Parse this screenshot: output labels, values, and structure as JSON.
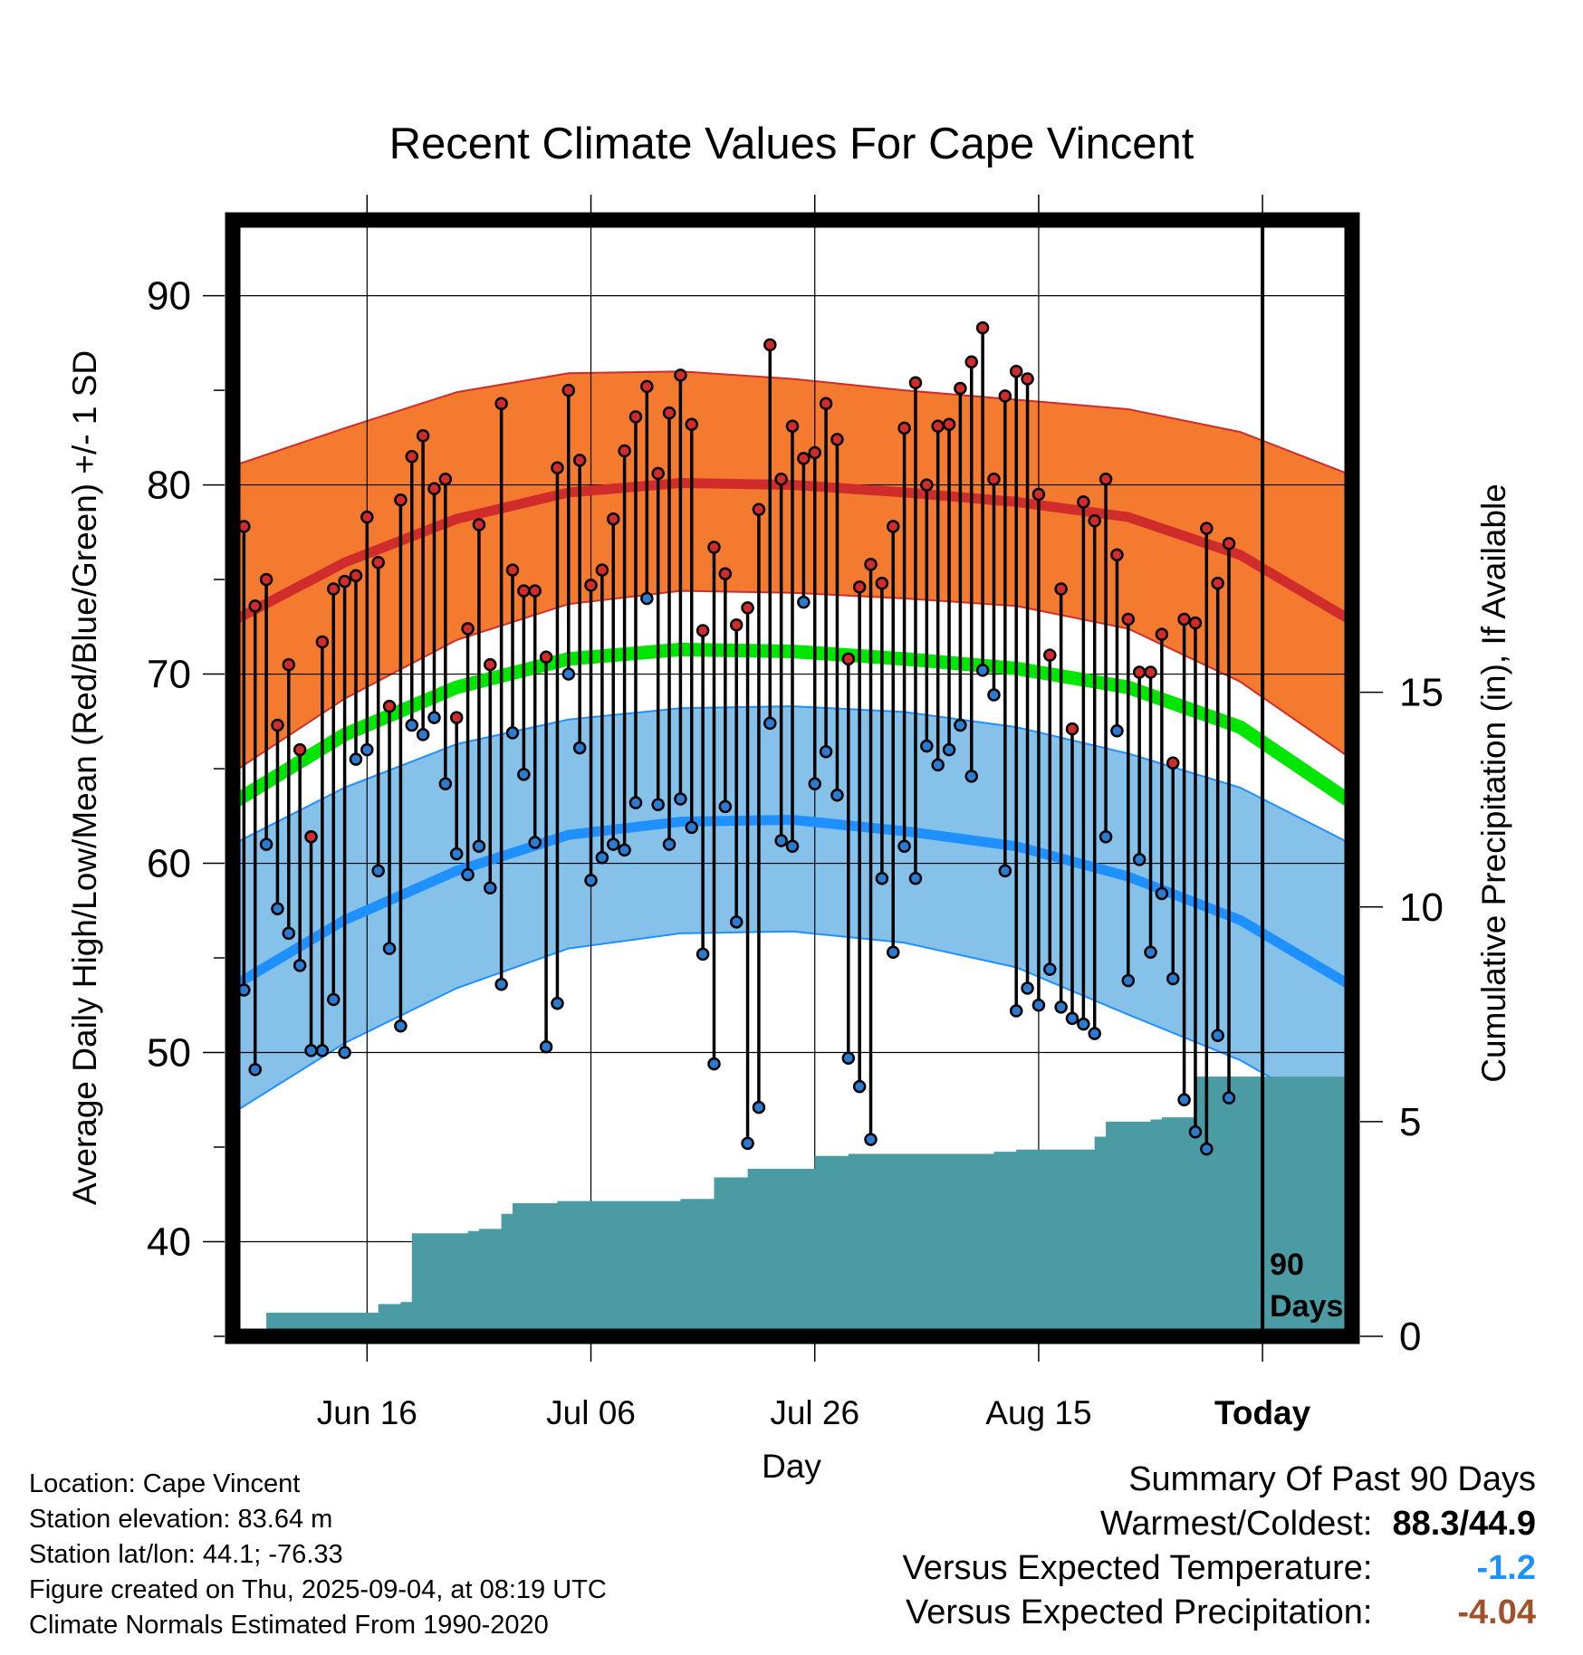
{
  "title": "Recent Climate Values For Cape Vincent",
  "colors": {
    "high_band": "#f47a30",
    "high_mean": "#d12c2c",
    "low_band": "#85c1e9",
    "low_mean": "#1e90ff",
    "mean": "#00e600",
    "precip": "#4a9ba3",
    "high_dot": "#d12c2c",
    "low_dot": "#2a7bd1"
  },
  "chart_data": {
    "type": "line",
    "title": "Recent Climate Values For Cape Vincent",
    "xlabel": "Day",
    "ylabel": "Average Daily High/Low/Mean (Red/Blue/Green) +/- 1 SD",
    "y2label": "Cumulative Precipitation (in), If Available",
    "xlim": [
      0,
      100
    ],
    "ylim": [
      35,
      94
    ],
    "y2lim": [
      0,
      26
    ],
    "x_ticks": [
      {
        "x": 12,
        "label": "Jun 16"
      },
      {
        "x": 32,
        "label": "Jul 06"
      },
      {
        "x": 52,
        "label": "Jul 26"
      },
      {
        "x": 72,
        "label": "Aug 15"
      },
      {
        "x": 92,
        "label": "Today"
      }
    ],
    "y_ticks": [
      40,
      50,
      60,
      70,
      80,
      90
    ],
    "y2_ticks": [
      0,
      5,
      10,
      15
    ],
    "today_x": 92,
    "today_label": [
      "90",
      "Days"
    ],
    "normals": {
      "x": [
        0,
        10,
        20,
        30,
        40,
        50,
        60,
        70,
        80,
        90,
        100
      ],
      "high_mean": [
        72.8,
        75.9,
        78.2,
        79.6,
        80.1,
        80.0,
        79.6,
        79.1,
        78.3,
        76.3,
        72.8
      ],
      "high_upper": [
        81.0,
        83.0,
        84.9,
        85.9,
        86.0,
        85.6,
        85.0,
        84.5,
        84.0,
        82.8,
        80.5
      ],
      "high_lower": [
        64.8,
        68.7,
        71.8,
        73.7,
        74.4,
        74.3,
        74.0,
        73.6,
        72.4,
        69.6,
        65.5
      ],
      "mean": [
        63.2,
        66.8,
        69.3,
        70.8,
        71.3,
        71.2,
        70.8,
        70.3,
        69.3,
        67.2,
        63.2
      ],
      "low_mean": [
        53.5,
        57.0,
        59.6,
        61.5,
        62.2,
        62.3,
        61.7,
        60.9,
        59.3,
        57.0,
        53.5
      ],
      "low_upper": [
        61.0,
        64.0,
        66.3,
        67.6,
        68.2,
        68.3,
        68.0,
        67.2,
        65.8,
        64.0,
        61.0
      ],
      "low_lower": [
        46.8,
        50.5,
        53.4,
        55.5,
        56.3,
        56.4,
        55.8,
        54.5,
        52.0,
        49.6,
        46.2
      ]
    },
    "series": [
      {
        "name": "High",
        "x": [
          0,
          1,
          2,
          3,
          4,
          5,
          6,
          7,
          8,
          9,
          10,
          11,
          12,
          13,
          14,
          15,
          16,
          17,
          18,
          19,
          20,
          21,
          22,
          23,
          24,
          25,
          26,
          27,
          28,
          29,
          30,
          31,
          32,
          33,
          34,
          35,
          36,
          37,
          38,
          39,
          40,
          41,
          42,
          43,
          44,
          45,
          46,
          47,
          48,
          49,
          50,
          51,
          52,
          53,
          54,
          55,
          56,
          57,
          58,
          59,
          60,
          61,
          62,
          63,
          64,
          65,
          66,
          67,
          68,
          69,
          70,
          71,
          72,
          73,
          74,
          75,
          76,
          77,
          78,
          79,
          80,
          81,
          82,
          83,
          84,
          85,
          86,
          87,
          88,
          89
        ],
        "values": [
          74.5,
          77.8,
          73.6,
          75.0,
          67.3,
          70.5,
          66.0,
          61.4,
          71.7,
          74.5,
          74.9,
          75.2,
          78.3,
          75.9,
          68.3,
          79.2,
          81.5,
          82.6,
          79.8,
          80.3,
          67.7,
          72.4,
          77.9,
          70.5,
          84.3,
          75.5,
          74.4,
          74.4,
          70.9,
          80.9,
          85.0,
          81.3,
          74.7,
          75.5,
          78.2,
          81.8,
          83.6,
          85.2,
          80.6,
          83.8,
          85.8,
          83.2,
          72.3,
          76.7,
          75.3,
          72.6,
          73.5,
          78.7,
          87.4,
          80.3,
          83.1,
          81.4,
          81.7,
          84.3,
          82.4,
          70.8,
          74.6,
          75.8,
          74.8,
          77.8,
          83.0,
          85.4,
          80.0,
          83.1,
          83.2,
          85.1,
          86.5,
          88.3,
          80.3,
          84.7,
          86.0,
          85.6,
          79.5,
          71.0,
          74.5,
          67.1,
          79.1,
          78.1,
          80.3,
          76.3,
          72.9,
          70.1,
          70.1,
          72.1,
          65.3,
          72.9,
          72.7,
          77.7,
          74.8,
          76.9
        ]
      },
      {
        "name": "Low",
        "x": [
          0,
          1,
          2,
          3,
          4,
          5,
          6,
          7,
          8,
          9,
          10,
          11,
          12,
          13,
          14,
          15,
          16,
          17,
          18,
          19,
          20,
          21,
          22,
          23,
          24,
          25,
          26,
          27,
          28,
          29,
          30,
          31,
          32,
          33,
          34,
          35,
          36,
          37,
          38,
          39,
          40,
          41,
          42,
          43,
          44,
          45,
          46,
          47,
          48,
          49,
          50,
          51,
          52,
          53,
          54,
          55,
          56,
          57,
          58,
          59,
          60,
          61,
          62,
          63,
          64,
          65,
          66,
          67,
          68,
          69,
          70,
          71,
          72,
          73,
          74,
          75,
          76,
          77,
          78,
          79,
          80,
          81,
          82,
          83,
          84,
          85,
          86,
          87,
          88,
          89
        ],
        "values": [
          56.4,
          53.3,
          49.1,
          61.0,
          57.6,
          56.3,
          54.6,
          50.1,
          50.1,
          52.8,
          50.0,
          65.5,
          66.0,
          59.6,
          55.5,
          51.4,
          67.3,
          66.8,
          67.7,
          64.2,
          60.5,
          59.4,
          60.9,
          58.7,
          53.6,
          66.9,
          64.7,
          61.1,
          50.3,
          52.6,
          70.0,
          66.1,
          59.1,
          60.3,
          61.0,
          60.7,
          63.2,
          74.0,
          63.1,
          61.0,
          63.4,
          61.9,
          55.2,
          49.4,
          63.0,
          56.9,
          45.2,
          47.1,
          67.4,
          61.2,
          60.9,
          73.8,
          64.2,
          65.9,
          63.6,
          49.7,
          48.2,
          45.4,
          59.2,
          55.3,
          60.9,
          59.2,
          66.2,
          65.2,
          66.0,
          67.3,
          64.6,
          70.2,
          68.9,
          59.6,
          52.2,
          53.4,
          52.5,
          54.4,
          52.4,
          51.8,
          51.5,
          51.0,
          61.4,
          67.0,
          53.8,
          60.2,
          55.3,
          58.4,
          53.9,
          47.5,
          45.8,
          44.9,
          50.9,
          47.6
        ]
      }
    ],
    "precipitation": {
      "x": [
        0,
        1,
        2,
        3,
        4,
        5,
        6,
        7,
        8,
        9,
        10,
        11,
        12,
        13,
        14,
        15,
        16,
        17,
        18,
        19,
        20,
        21,
        22,
        23,
        24,
        25,
        26,
        27,
        28,
        29,
        30,
        31,
        32,
        33,
        34,
        35,
        36,
        37,
        38,
        39,
        40,
        41,
        42,
        43,
        44,
        45,
        46,
        47,
        48,
        49,
        50,
        51,
        52,
        53,
        54,
        55,
        56,
        57,
        58,
        59,
        60,
        61,
        62,
        63,
        64,
        65,
        66,
        67,
        68,
        69,
        70,
        71,
        72,
        73,
        74,
        75,
        76,
        77,
        78,
        79,
        80,
        81,
        82,
        83,
        84,
        85,
        86,
        87,
        88,
        89,
        90,
        91,
        92,
        93,
        94,
        95,
        96,
        97,
        98,
        99,
        100
      ],
      "values": [
        0,
        0,
        0,
        0.55,
        0.55,
        0.55,
        0.55,
        0.55,
        0.55,
        0.55,
        0.55,
        0.55,
        0.55,
        0.75,
        0.75,
        0.8,
        2.4,
        2.4,
        2.4,
        2.4,
        2.4,
        2.45,
        2.5,
        2.5,
        2.85,
        3.1,
        3.1,
        3.1,
        3.1,
        3.15,
        3.15,
        3.15,
        3.15,
        3.15,
        3.15,
        3.15,
        3.15,
        3.15,
        3.15,
        3.15,
        3.2,
        3.2,
        3.2,
        3.7,
        3.7,
        3.7,
        3.9,
        3.9,
        3.9,
        3.9,
        3.9,
        3.9,
        4.2,
        4.2,
        4.2,
        4.25,
        4.25,
        4.25,
        4.25,
        4.25,
        4.25,
        4.25,
        4.25,
        4.25,
        4.25,
        4.25,
        4.25,
        4.25,
        4.3,
        4.3,
        4.35,
        4.35,
        4.35,
        4.35,
        4.35,
        4.35,
        4.35,
        4.65,
        5.0,
        5.0,
        5.0,
        5.0,
        5.05,
        5.1,
        5.1,
        5.1,
        6.05,
        6.05,
        6.05,
        6.05,
        6.05,
        6.05,
        6.05,
        6.05,
        6.05,
        6.05,
        6.05,
        6.05,
        6.05,
        6.05,
        6.05
      ]
    }
  },
  "location": {
    "location": "Location: Cape Vincent",
    "elevation": "Station elevation: 83.64 m",
    "latlon": "Station lat/lon: 44.1; -76.33",
    "created": "Figure created on Thu, 2025-09-04, at 08:19 UTC",
    "normals": "Climate Normals Estimated From 1990-2020"
  },
  "summary": {
    "title": "Summary Of Past 90 Days",
    "warm_label": "Warmest/Coldest:",
    "warm_value": "88.3/44.9",
    "temp_label": "Versus Expected Temperature:",
    "temp_value": "-1.2",
    "prcp_label": "Versus Expected Precipitation:",
    "prcp_value": "-4.04"
  }
}
